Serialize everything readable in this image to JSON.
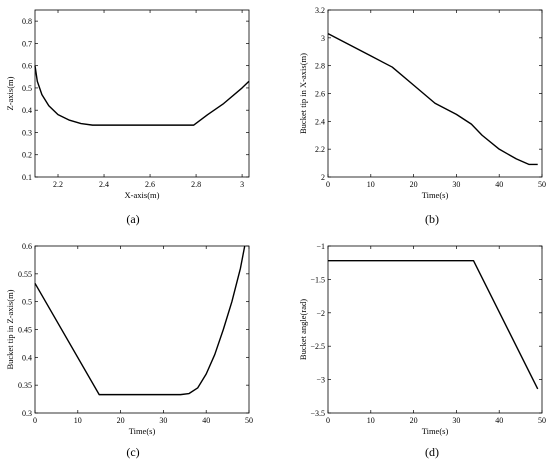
{
  "chart_data": [
    {
      "id": "a",
      "type": "line",
      "caption": "(a)",
      "xlabel": "X-axis(m)",
      "ylabel": "Z-axis(m)",
      "xlim": [
        2.1,
        3.03
      ],
      "ylim": [
        0.1,
        0.85
      ],
      "xticks": [
        2.2,
        2.4,
        2.6,
        2.8,
        3
      ],
      "xticklabels": [
        "2.2",
        "2.4",
        "2.6",
        "2.8",
        "3"
      ],
      "yticks": [
        0.1,
        0.2,
        0.3,
        0.4,
        0.5,
        0.6,
        0.7,
        0.8
      ],
      "yticklabels": [
        "0.1",
        "0.2",
        "0.3",
        "0.4",
        "0.5",
        "0.6",
        "0.7",
        "0.8"
      ],
      "series": [
        {
          "x": [
            2.1,
            2.11,
            2.13,
            2.16,
            2.2,
            2.25,
            2.3,
            2.35,
            2.37,
            2.5,
            2.65,
            2.79,
            2.85,
            2.92,
            3.0,
            3.03
          ],
          "y": [
            0.6,
            0.53,
            0.47,
            0.42,
            0.38,
            0.355,
            0.34,
            0.333,
            0.333,
            0.333,
            0.333,
            0.333,
            0.38,
            0.43,
            0.5,
            0.53
          ]
        }
      ]
    },
    {
      "id": "b",
      "type": "line",
      "caption": "(b)",
      "xlabel": "Time(s)",
      "ylabel": "Bucket tip in X-axis(m)",
      "xlim": [
        0,
        50
      ],
      "ylim": [
        2,
        3.2
      ],
      "xticks": [
        0,
        10,
        20,
        30,
        40,
        50
      ],
      "xticklabels": [
        "0",
        "10",
        "20",
        "30",
        "40",
        "50"
      ],
      "yticks": [
        2,
        2.2,
        2.4,
        2.6,
        2.8,
        3,
        3.2
      ],
      "yticklabels": [
        "2",
        "2.2",
        "2.4",
        "2.6",
        "2.8",
        "3",
        "3.2"
      ],
      "series": [
        {
          "x": [
            0,
            5,
            10,
            15,
            20,
            25,
            30,
            33.5,
            36,
            40,
            44,
            47,
            49
          ],
          "y": [
            3.03,
            2.95,
            2.87,
            2.79,
            2.66,
            2.53,
            2.45,
            2.38,
            2.3,
            2.2,
            2.13,
            2.09,
            2.09
          ]
        }
      ]
    },
    {
      "id": "c",
      "type": "line",
      "caption": "(c)",
      "xlabel": "Time(s)",
      "ylabel": "Bucket tip in Z-axis(m)",
      "xlim": [
        0,
        50
      ],
      "ylim": [
        0.3,
        0.6
      ],
      "xticks": [
        0,
        10,
        20,
        30,
        40,
        50
      ],
      "xticklabels": [
        "0",
        "10",
        "20",
        "30",
        "40",
        "50"
      ],
      "yticks": [
        0.3,
        0.35,
        0.4,
        0.45,
        0.5,
        0.55,
        0.6
      ],
      "yticklabels": [
        "0.3",
        "0.35",
        "0.4",
        "0.45",
        "0.5",
        "0.55",
        "0.6"
      ],
      "series": [
        {
          "x": [
            0,
            15,
            20,
            25,
            30,
            34,
            36,
            38,
            40,
            42,
            44,
            46,
            48,
            49
          ],
          "y": [
            0.533,
            0.333,
            0.333,
            0.333,
            0.333,
            0.333,
            0.335,
            0.345,
            0.37,
            0.405,
            0.45,
            0.5,
            0.56,
            0.6
          ]
        }
      ]
    },
    {
      "id": "d",
      "type": "line",
      "caption": "(d)",
      "xlabel": "Time(s)",
      "ylabel": "Bucket angle(rad)",
      "xlim": [
        0,
        50
      ],
      "ylim": [
        -3.5,
        -1
      ],
      "xticks": [
        0,
        10,
        20,
        30,
        40,
        50
      ],
      "xticklabels": [
        "0",
        "10",
        "20",
        "30",
        "40",
        "50"
      ],
      "yticks": [
        -3.5,
        -3,
        -2.5,
        -2,
        -1.5,
        -1
      ],
      "yticklabels": [
        "−3.5",
        "−3",
        "−2.5",
        "−2",
        "−1.5",
        "−1"
      ],
      "series": [
        {
          "x": [
            0,
            34,
            49
          ],
          "y": [
            -1.22,
            -1.22,
            -3.14
          ]
        }
      ]
    }
  ]
}
